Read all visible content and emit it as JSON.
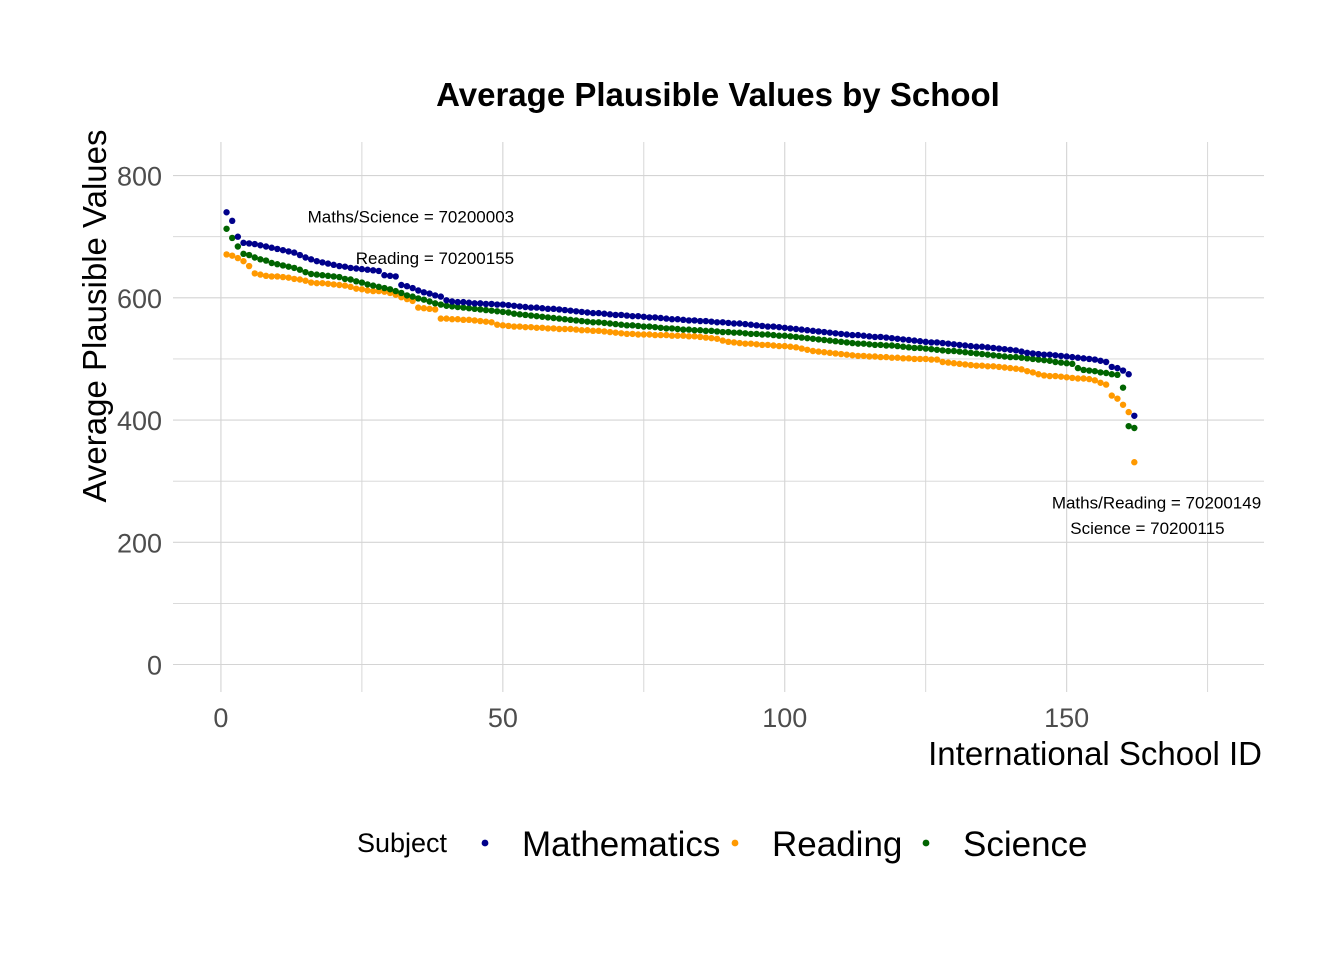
{
  "chart_data": {
    "type": "scatter",
    "title": "Average Plausible Values by School",
    "xlabel": "International School ID",
    "ylabel": "Average Plausible Values",
    "xlim": [
      -8.5,
      185
    ],
    "ylim": [
      -45,
      855
    ],
    "x_ticks": [
      0,
      50,
      100,
      150
    ],
    "y_ticks": [
      0,
      200,
      400,
      600,
      800
    ],
    "grid": true,
    "legend": {
      "title": "Subject",
      "position": "bottom"
    },
    "series": [
      {
        "name": "Mathematics",
        "color": "#00008b",
        "values": [
          740,
          726,
          700,
          690,
          689,
          688,
          686,
          684,
          682,
          680,
          678,
          676,
          674,
          670,
          666,
          663,
          660,
          658,
          656,
          654,
          652,
          651,
          649,
          648,
          647,
          646,
          645,
          644,
          637,
          636,
          635,
          621,
          619,
          616,
          612,
          609,
          607,
          604,
          602,
          596,
          594,
          593,
          593,
          592,
          591,
          591,
          590,
          590,
          589,
          589,
          588,
          587,
          586,
          585,
          584,
          584,
          583,
          582,
          582,
          581,
          580,
          579,
          578,
          577,
          576,
          575,
          575,
          574,
          573,
          572,
          572,
          571,
          570,
          570,
          569,
          568,
          568,
          567,
          566,
          565,
          565,
          564,
          563,
          563,
          562,
          562,
          561,
          560,
          560,
          559,
          558,
          558,
          557,
          556,
          555,
          554,
          553,
          553,
          552,
          551,
          550,
          549,
          548,
          547,
          546,
          545,
          544,
          543,
          542,
          541,
          540,
          539,
          539,
          538,
          537,
          536,
          536,
          535,
          534,
          533,
          532,
          531,
          530,
          529,
          528,
          527,
          527,
          526,
          525,
          524,
          523,
          522,
          521,
          520,
          520,
          519,
          518,
          517,
          516,
          515,
          514,
          512,
          510,
          509,
          508,
          507,
          507,
          506,
          505,
          504,
          503,
          502,
          501,
          500,
          499,
          497,
          495,
          487,
          485,
          481,
          475,
          407
        ],
        "annotation": "Maths/Science = 70200003"
      },
      {
        "name": "Reading",
        "color": "#ff9900",
        "values": [
          671,
          669,
          665,
          660,
          652,
          640,
          638,
          636,
          635,
          635,
          634,
          633,
          631,
          630,
          628,
          625,
          624,
          624,
          623,
          622,
          621,
          620,
          618,
          615,
          614,
          612,
          611,
          611,
          610,
          608,
          605,
          601,
          598,
          595,
          584,
          583,
          582,
          581,
          566,
          566,
          565,
          565,
          564,
          564,
          563,
          562,
          561,
          560,
          556,
          555,
          554,
          553,
          553,
          552,
          552,
          551,
          551,
          550,
          550,
          549,
          549,
          549,
          548,
          547,
          547,
          546,
          546,
          545,
          544,
          543,
          542,
          541,
          541,
          540,
          540,
          540,
          539,
          539,
          539,
          538,
          538,
          538,
          537,
          537,
          536,
          535,
          534,
          533,
          530,
          528,
          527,
          526,
          525,
          525,
          524,
          523,
          523,
          522,
          521,
          521,
          520,
          519,
          517,
          515,
          513,
          512,
          511,
          510,
          509,
          508,
          507,
          506,
          505,
          505,
          504,
          504,
          503,
          503,
          502,
          502,
          501,
          501,
          500,
          500,
          500,
          499,
          499,
          495,
          494,
          493,
          492,
          491,
          490,
          489,
          489,
          488,
          488,
          487,
          486,
          485,
          484,
          483,
          480,
          478,
          475,
          473,
          472,
          472,
          471,
          470,
          469,
          468,
          468,
          467,
          465,
          461,
          458,
          440,
          435,
          425,
          413,
          331
        ],
        "annotation": "Reading = 70200155"
      },
      {
        "name": "Science",
        "color": "#006400",
        "values": [
          713,
          698,
          684,
          672,
          670,
          666,
          663,
          661,
          657,
          655,
          653,
          651,
          649,
          646,
          642,
          639,
          638,
          637,
          636,
          635,
          634,
          631,
          630,
          627,
          625,
          622,
          620,
          618,
          616,
          614,
          611,
          608,
          604,
          602,
          599,
          597,
          594,
          591,
          589,
          587,
          586,
          585,
          584,
          583,
          582,
          581,
          580,
          579,
          578,
          577,
          576,
          574,
          573,
          572,
          571,
          570,
          569,
          568,
          567,
          566,
          565,
          564,
          563,
          562,
          561,
          560,
          560,
          559,
          558,
          557,
          556,
          555,
          555,
          554,
          553,
          553,
          552,
          551,
          550,
          550,
          549,
          548,
          548,
          547,
          547,
          546,
          546,
          545,
          544,
          544,
          543,
          543,
          542,
          541,
          541,
          540,
          540,
          539,
          538,
          538,
          537,
          536,
          535,
          534,
          533,
          532,
          531,
          530,
          529,
          528,
          527,
          526,
          525,
          525,
          524,
          523,
          523,
          522,
          522,
          521,
          520,
          519,
          518,
          518,
          517,
          516,
          515,
          514,
          513,
          513,
          512,
          511,
          510,
          509,
          508,
          507,
          506,
          505,
          504,
          503,
          503,
          502,
          501,
          500,
          499,
          498,
          497,
          495,
          494,
          493,
          492,
          485,
          482,
          481,
          480,
          478,
          477,
          475,
          474,
          453,
          390,
          387
        ],
        "annotation": "Science = 70200115"
      }
    ],
    "annotations": [
      {
        "text": "Maths/Science = 70200003",
        "x": 52,
        "y": 733,
        "anchor": "end"
      },
      {
        "text": "Reading = 70200155",
        "x": 52,
        "y": 665,
        "anchor": "end"
      },
      {
        "text": "Maths/Reading = 70200149",
        "x": 184.5,
        "y": 265,
        "anchor": "end"
      },
      {
        "text": "Science = 70200115",
        "x": 178,
        "y": 223,
        "anchor": "end"
      }
    ]
  }
}
